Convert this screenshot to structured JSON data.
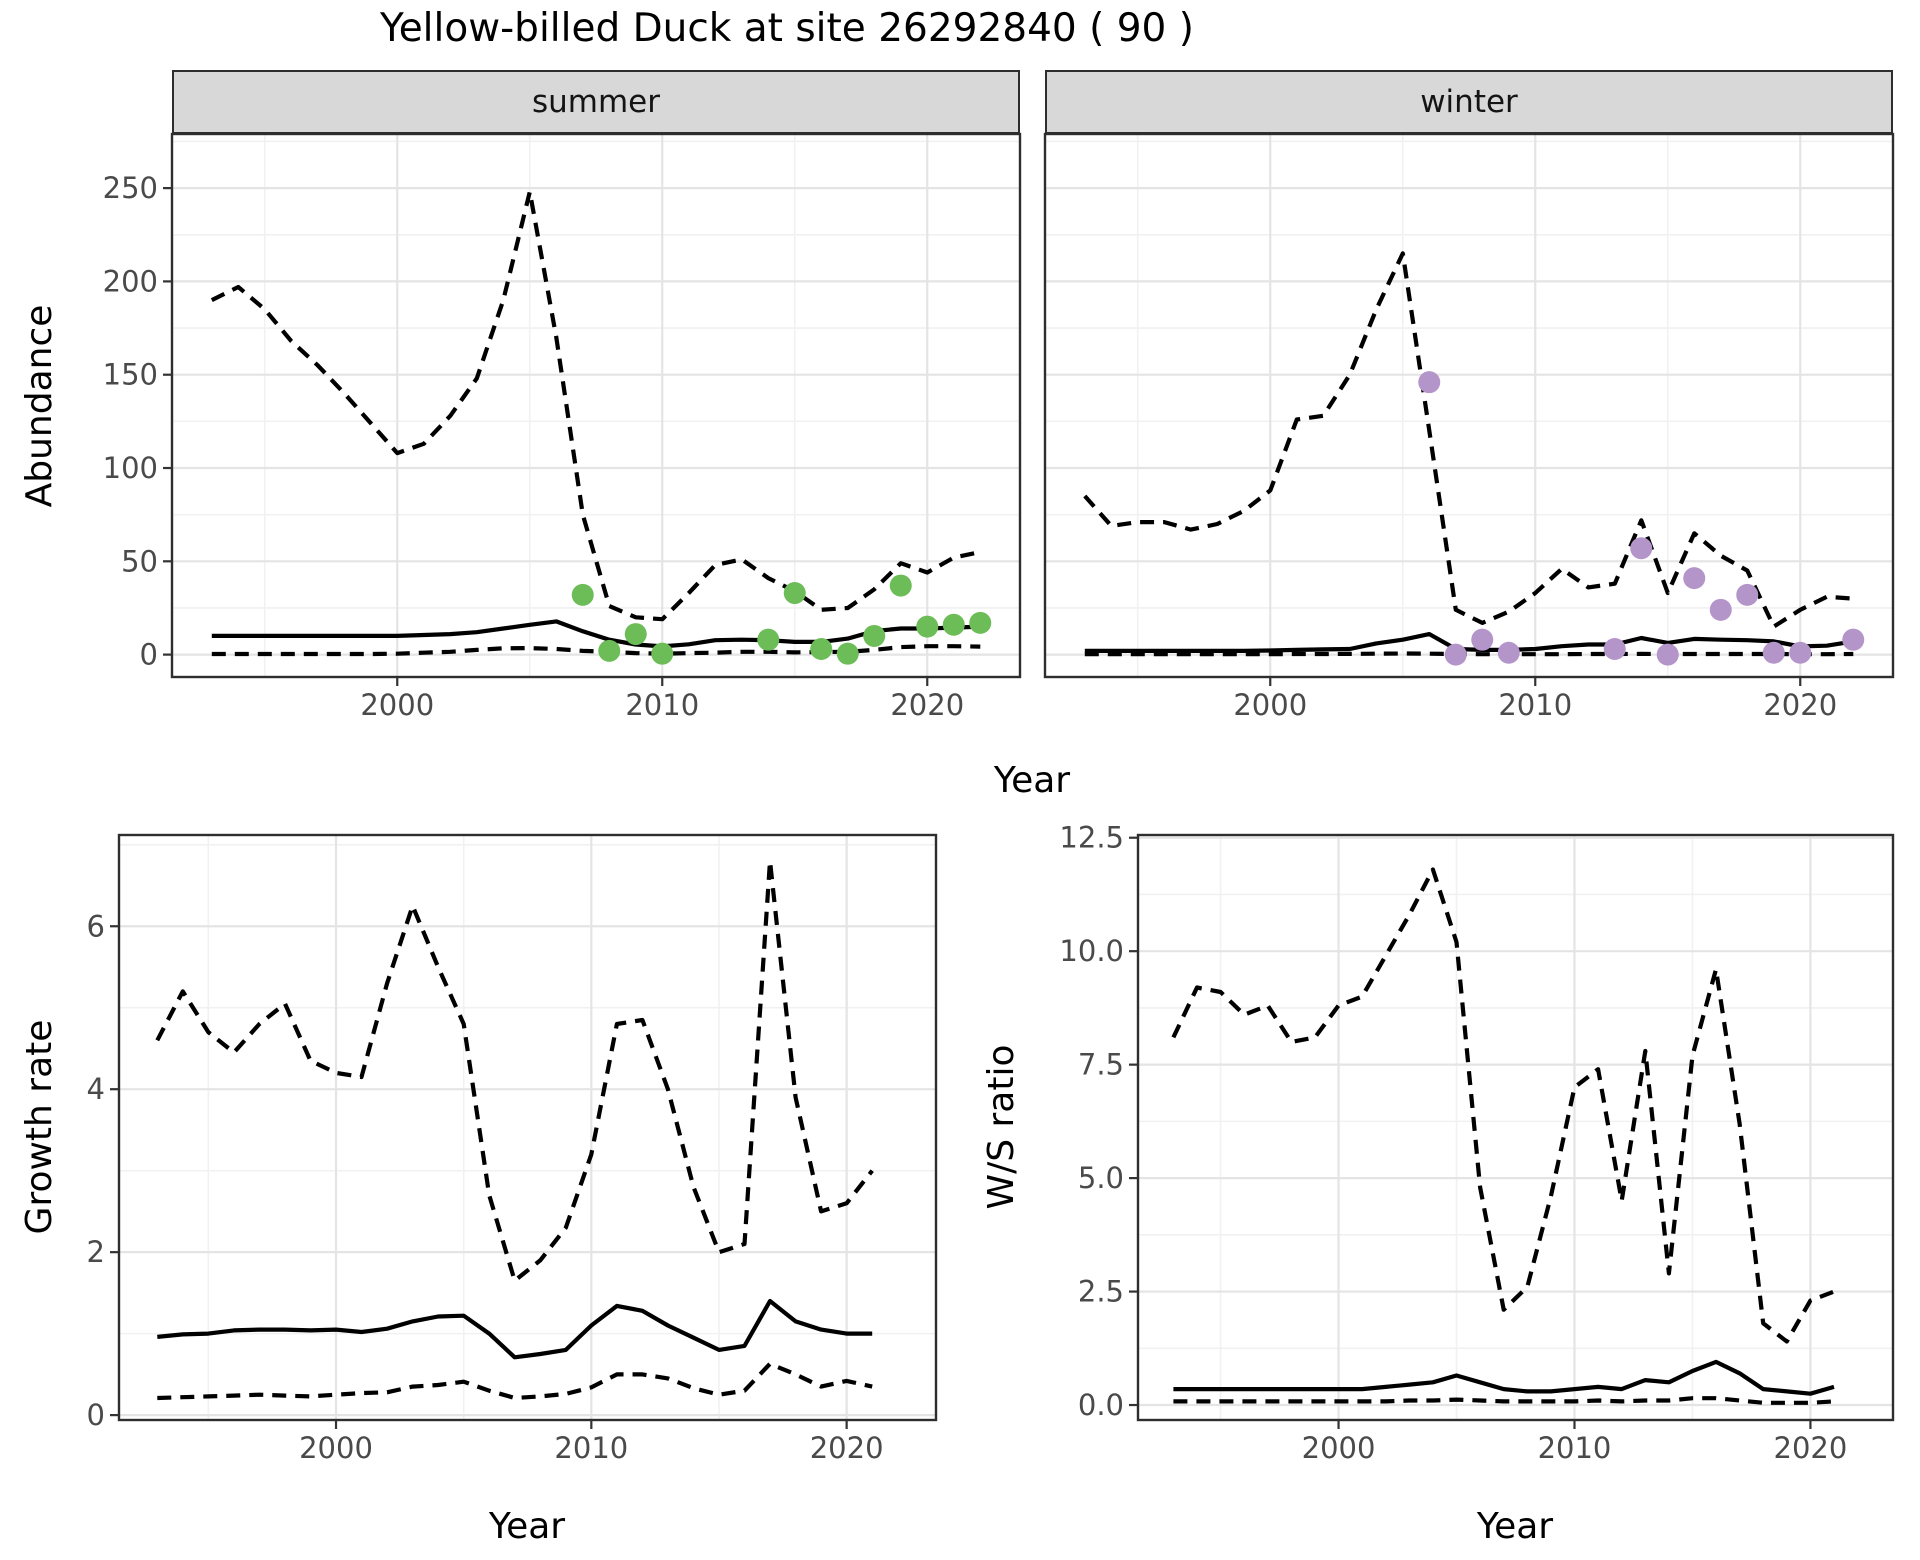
{
  "title": "Yellow-billed Duck at site 26292840 ( 90 )",
  "axes": {
    "abundance_label": "Abundance",
    "year_label": "Year",
    "growth_label": "Growth rate",
    "ws_label": "W/S ratio"
  },
  "colors": {
    "summer_points": "#6cbd57",
    "winter_points": "#b495c9",
    "line": "#000000",
    "strip_fill": "#d8d8d8",
    "panel_border": "#2e2e2e",
    "grid_major": "#e4e4e4",
    "grid_minor": "#f1f1f1",
    "tick_text": "#4a4a4a"
  },
  "chart_data": [
    {
      "id": "summer",
      "type": "line",
      "facet_label": "summer",
      "ylabel": "Abundance",
      "xlabel": "Year",
      "xlim": [
        1991.5,
        2023.5
      ],
      "ylim": [
        -12,
        279
      ],
      "x_tick_values": [
        2000,
        2010,
        2020
      ],
      "x_tick_labels": [
        "2000",
        "2010",
        "2020"
      ],
      "x_minor": [
        1995,
        2005,
        2015
      ],
      "y_tick_values": [
        0,
        50,
        100,
        150,
        200,
        250
      ],
      "y_tick_labels": [
        "0",
        "50",
        "100",
        "150",
        "200",
        "250"
      ],
      "y_minor": [
        25,
        75,
        125,
        175,
        225,
        275
      ],
      "years": [
        1993,
        1994,
        1995,
        1996,
        1997,
        1998,
        1999,
        2000,
        2001,
        2002,
        2003,
        2004,
        2005,
        2006,
        2007,
        2008,
        2009,
        2010,
        2011,
        2012,
        2013,
        2014,
        2015,
        2016,
        2017,
        2018,
        2019,
        2020,
        2021,
        2022
      ],
      "series": [
        {
          "name": "upper_ci",
          "style": "dashed",
          "values": [
            190,
            197,
            185,
            168,
            155,
            140,
            124,
            108,
            113,
            128,
            148,
            190,
            248,
            170,
            75,
            26,
            20,
            19,
            33,
            48,
            51,
            41,
            34,
            24,
            25,
            35,
            49,
            44,
            52,
            55
          ]
        },
        {
          "name": "median",
          "style": "solid",
          "values": [
            10,
            10,
            10,
            10,
            10,
            10,
            10,
            10,
            10.5,
            11,
            12,
            14,
            16,
            17.8,
            12.5,
            8,
            5.4,
            4.4,
            5.5,
            7.7,
            8,
            7.7,
            6.8,
            6.8,
            8.6,
            12.6,
            14,
            14,
            14.5,
            15
          ]
        },
        {
          "name": "lower_ci",
          "style": "dashed",
          "values": [
            0.3,
            0.3,
            0.3,
            0.3,
            0.3,
            0.3,
            0.3,
            0.5,
            1,
            1.5,
            2.5,
            3.4,
            3.5,
            3,
            2,
            1.5,
            0.8,
            0.5,
            0.8,
            1,
            1.5,
            1.5,
            1.2,
            1.4,
            1.5,
            2.5,
            4,
            4.5,
            4.5,
            4.3
          ]
        }
      ],
      "points": [
        [
          2007,
          32
        ],
        [
          2008,
          2
        ],
        [
          2009,
          11
        ],
        [
          2010,
          0.5
        ],
        [
          2014,
          8
        ],
        [
          2015,
          33
        ],
        [
          2016,
          3
        ],
        [
          2017,
          0.5
        ],
        [
          2018,
          10
        ],
        [
          2019,
          37
        ],
        [
          2020,
          15
        ],
        [
          2021,
          16
        ],
        [
          2022,
          17
        ]
      ],
      "point_color": "#6cbd57"
    },
    {
      "id": "winter",
      "type": "line",
      "facet_label": "winter",
      "ylabel": "Abundance",
      "xlabel": "Year",
      "xlim": [
        1991.5,
        2023.5
      ],
      "ylim": [
        -12,
        279
      ],
      "x_tick_values": [
        2000,
        2010,
        2020
      ],
      "x_tick_labels": [
        "2000",
        "2010",
        "2020"
      ],
      "x_minor": [
        1995,
        2005,
        2015
      ],
      "y_tick_values": [
        0,
        50,
        100,
        150,
        200,
        250
      ],
      "y_tick_labels": [
        "0",
        "50",
        "100",
        "150",
        "200",
        "250"
      ],
      "y_minor": [
        25,
        75,
        125,
        175,
        225,
        275
      ],
      "years": [
        1993,
        1994,
        1995,
        1996,
        1997,
        1998,
        1999,
        2000,
        2001,
        2002,
        2003,
        2004,
        2005,
        2006,
        2007,
        2008,
        2009,
        2010,
        2011,
        2012,
        2013,
        2014,
        2015,
        2016,
        2017,
        2018,
        2019,
        2020,
        2021,
        2022
      ],
      "series": [
        {
          "name": "upper_ci",
          "style": "dashed",
          "values": [
            85,
            69,
            71,
            71,
            67,
            70,
            77,
            88,
            126,
            128,
            150,
            185,
            215,
            120,
            24,
            17,
            23,
            33,
            46,
            36,
            38,
            72,
            33,
            65,
            53,
            45,
            15,
            24,
            31,
            30
          ]
        },
        {
          "name": "median",
          "style": "solid",
          "values": [
            2,
            2,
            2,
            2,
            2,
            2,
            2,
            2.2,
            2.5,
            2.8,
            3,
            6,
            8,
            11,
            3,
            2.5,
            2.5,
            3,
            4.5,
            5.4,
            5.4,
            8.9,
            6.3,
            8.4,
            8,
            7.7,
            7.1,
            4.4,
            4.8,
            7.1
          ]
        },
        {
          "name": "lower_ci",
          "style": "dashed",
          "values": [
            0.2,
            0.2,
            0.2,
            0.2,
            0.2,
            0.2,
            0.2,
            0.2,
            0.3,
            0.3,
            0.4,
            0.5,
            0.6,
            0.5,
            0.3,
            0.2,
            0.2,
            0.2,
            0.2,
            0.3,
            0.3,
            0.4,
            0.3,
            0.3,
            0.3,
            0.3,
            0.3,
            0.2,
            0.2,
            0.3
          ]
        }
      ],
      "points": [
        [
          2006,
          146
        ],
        [
          2007,
          0
        ],
        [
          2008,
          8
        ],
        [
          2009,
          1
        ],
        [
          2013,
          3
        ],
        [
          2014,
          57
        ],
        [
          2015,
          0
        ],
        [
          2016,
          41
        ],
        [
          2017,
          24
        ],
        [
          2018,
          32
        ],
        [
          2019,
          1
        ],
        [
          2020,
          1
        ],
        [
          2022,
          8
        ]
      ],
      "point_color": "#b495c9"
    },
    {
      "id": "growth",
      "type": "line",
      "facet_label": "",
      "ylabel": "Growth rate",
      "xlabel": "Year",
      "xlim": [
        1991.5,
        2023.5
      ],
      "ylim": [
        -0.06,
        7.12
      ],
      "x_tick_values": [
        2000,
        2010,
        2020
      ],
      "x_tick_labels": [
        "2000",
        "2010",
        "2020"
      ],
      "x_minor": [
        1995,
        2005,
        2015
      ],
      "y_tick_values": [
        0,
        2,
        4,
        6
      ],
      "y_tick_labels": [
        "0",
        "2",
        "4",
        "6"
      ],
      "y_minor": [
        1,
        3,
        5,
        7
      ],
      "years": [
        1993,
        1994,
        1995,
        1996,
        1997,
        1998,
        1999,
        2000,
        2001,
        2002,
        2003,
        2004,
        2005,
        2006,
        2007,
        2008,
        2009,
        2010,
        2011,
        2012,
        2013,
        2014,
        2015,
        2016,
        2017,
        2018,
        2019,
        2020,
        2021
      ],
      "series": [
        {
          "name": "upper_ci",
          "style": "dashed",
          "values": [
            4.6,
            5.2,
            4.7,
            4.45,
            4.8,
            5.05,
            4.35,
            4.2,
            4.15,
            5.3,
            6.25,
            5.5,
            4.8,
            2.7,
            1.65,
            1.9,
            2.3,
            3.2,
            4.8,
            4.85,
            4.0,
            2.8,
            2.0,
            2.1,
            6.8,
            3.9,
            2.5,
            2.6,
            3.0
          ]
        },
        {
          "name": "median",
          "style": "solid",
          "values": [
            0.96,
            0.99,
            1.0,
            1.04,
            1.05,
            1.05,
            1.04,
            1.05,
            1.02,
            1.06,
            1.15,
            1.21,
            1.22,
            1.0,
            0.71,
            0.75,
            0.8,
            1.1,
            1.34,
            1.28,
            1.1,
            0.95,
            0.8,
            0.85,
            1.4,
            1.15,
            1.05,
            1.0,
            1.0
          ]
        },
        {
          "name": "lower_ci",
          "style": "dashed",
          "values": [
            0.21,
            0.22,
            0.23,
            0.24,
            0.25,
            0.24,
            0.23,
            0.25,
            0.27,
            0.28,
            0.35,
            0.37,
            0.41,
            0.3,
            0.21,
            0.23,
            0.26,
            0.34,
            0.5,
            0.5,
            0.45,
            0.33,
            0.25,
            0.3,
            0.63,
            0.5,
            0.35,
            0.42,
            0.35
          ]
        }
      ],
      "points": [],
      "point_color": "#000000"
    },
    {
      "id": "ws",
      "type": "line",
      "facet_label": "",
      "ylabel": "W/S ratio",
      "xlabel": "Year",
      "xlim": [
        1991.5,
        2023.5
      ],
      "ylim": [
        -0.33,
        12.56
      ],
      "x_tick_values": [
        2000,
        2010,
        2020
      ],
      "x_tick_labels": [
        "2000",
        "2010",
        "2020"
      ],
      "x_minor": [
        1995,
        2005,
        2015
      ],
      "y_tick_values": [
        0,
        2.5,
        5,
        7.5,
        10,
        12.5
      ],
      "y_tick_labels": [
        "0.0",
        "2.5",
        "5.0",
        "7.5",
        "10.0",
        "12.5"
      ],
      "y_minor": [
        1.25,
        3.75,
        6.25,
        8.75,
        11.25
      ],
      "years": [
        1993,
        1994,
        1995,
        1996,
        1997,
        1998,
        1999,
        2000,
        2001,
        2002,
        2003,
        2004,
        2005,
        2006,
        2007,
        2008,
        2009,
        2010,
        2011,
        2012,
        2013,
        2014,
        2015,
        2016,
        2017,
        2018,
        2019,
        2020,
        2021
      ],
      "series": [
        {
          "name": "upper_ci",
          "style": "dashed",
          "values": [
            8.1,
            9.2,
            9.1,
            8.6,
            8.8,
            8.0,
            8.1,
            8.8,
            9.0,
            9.9,
            10.8,
            11.8,
            10.2,
            4.8,
            2.1,
            2.6,
            4.6,
            7.0,
            7.4,
            4.5,
            7.8,
            2.9,
            7.7,
            9.6,
            6.2,
            1.8,
            1.4,
            2.3,
            2.5
          ]
        },
        {
          "name": "median",
          "style": "solid",
          "values": [
            0.35,
            0.35,
            0.35,
            0.35,
            0.35,
            0.35,
            0.35,
            0.35,
            0.35,
            0.4,
            0.45,
            0.5,
            0.65,
            0.5,
            0.35,
            0.3,
            0.3,
            0.35,
            0.4,
            0.35,
            0.55,
            0.5,
            0.75,
            0.95,
            0.7,
            0.35,
            0.3,
            0.25,
            0.4
          ]
        },
        {
          "name": "lower_ci",
          "style": "dashed",
          "values": [
            0.08,
            0.08,
            0.08,
            0.08,
            0.08,
            0.08,
            0.08,
            0.08,
            0.08,
            0.08,
            0.1,
            0.1,
            0.12,
            0.1,
            0.08,
            0.08,
            0.08,
            0.08,
            0.1,
            0.08,
            0.1,
            0.1,
            0.15,
            0.15,
            0.1,
            0.05,
            0.05,
            0.05,
            0.08
          ]
        }
      ],
      "points": [],
      "point_color": "#000000"
    }
  ]
}
